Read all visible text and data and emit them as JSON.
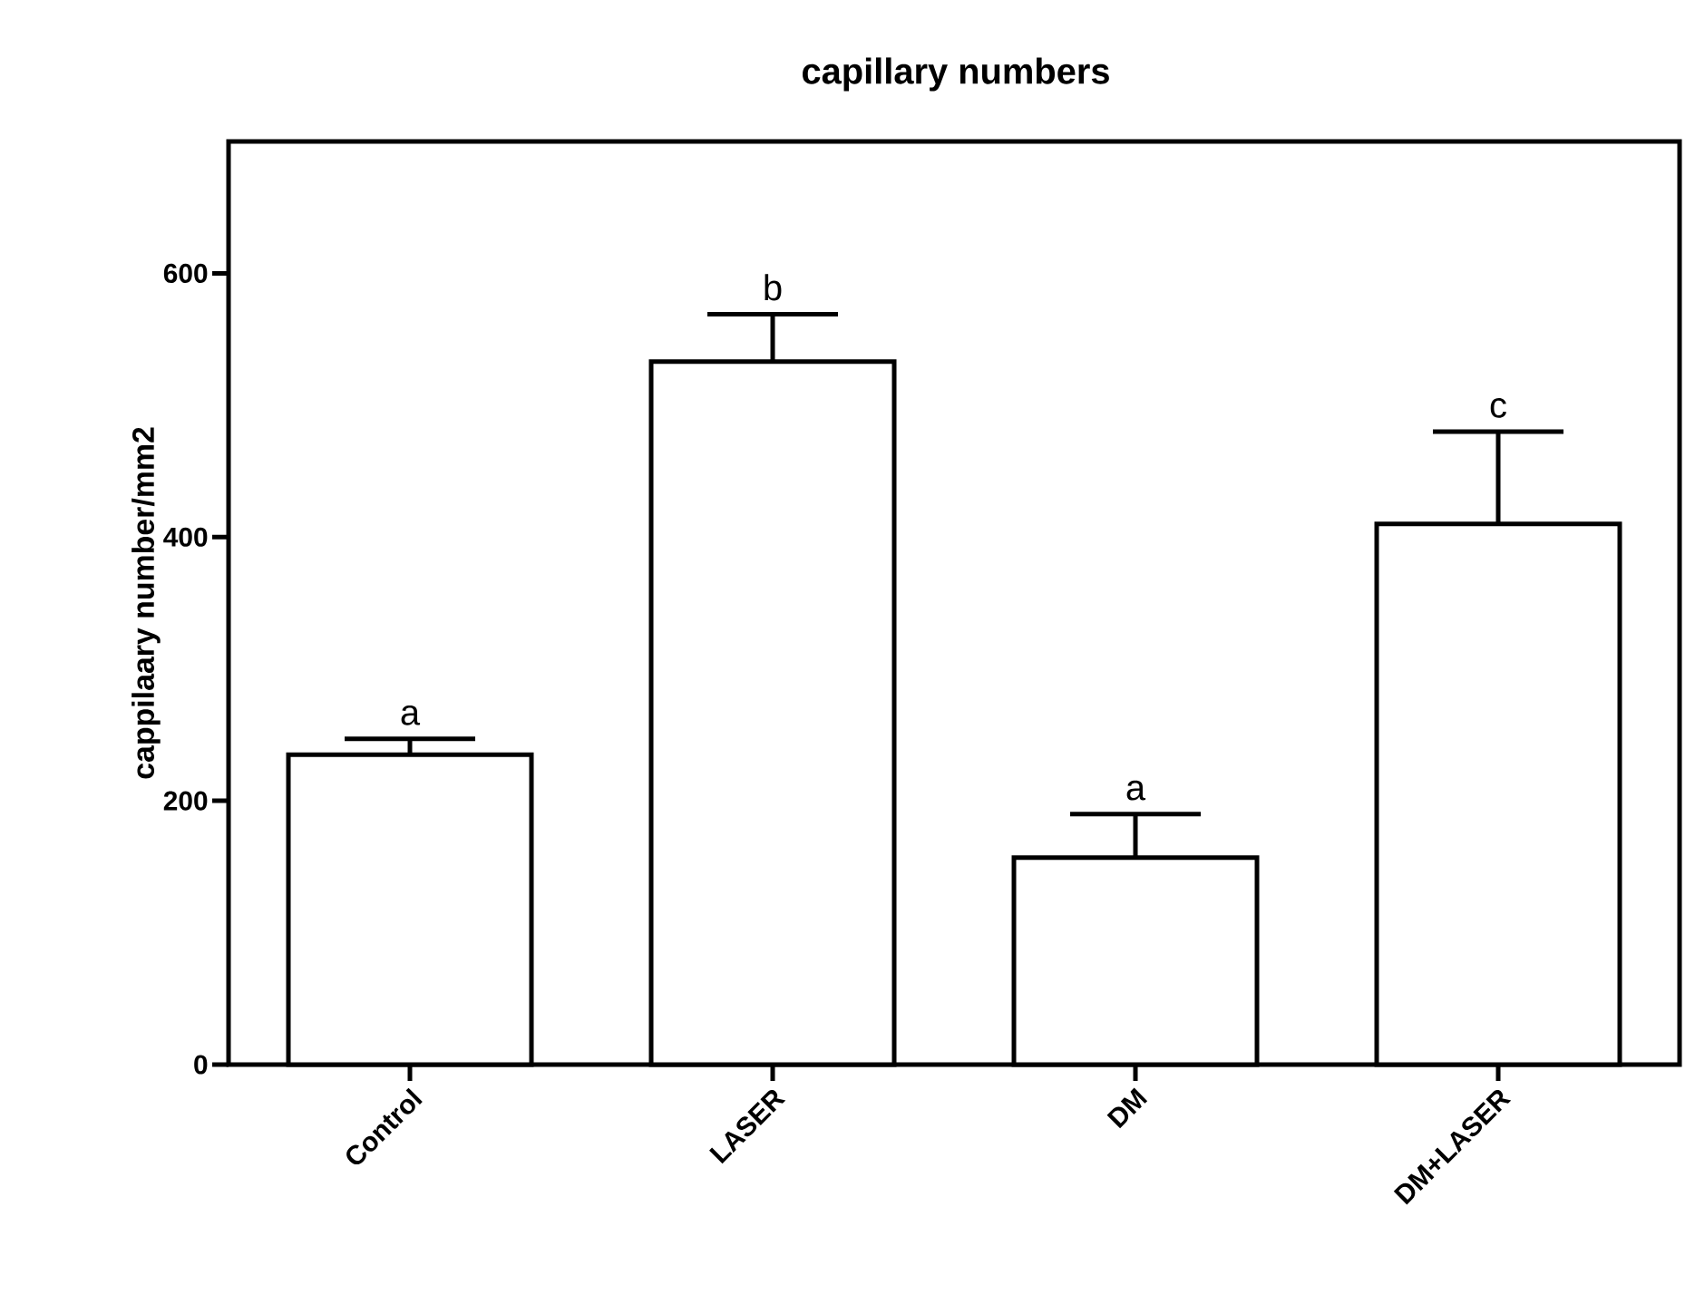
{
  "chart_data": {
    "type": "bar",
    "title": "capillary numbers",
    "ylabel": "cappilaary number/mm2",
    "categories": [
      "Control",
      "LASER",
      "DM",
      "DM+LASER"
    ],
    "values": [
      235,
      533,
      157,
      410
    ],
    "errors": [
      12,
      36,
      33,
      70
    ],
    "color": "#ffffff",
    "ylim": [
      0,
      700
    ],
    "yticks": [
      0,
      200,
      400,
      600
    ],
    "grid": false,
    "annotations": [
      {
        "text": "a",
        "x": "Control",
        "y": 247
      },
      {
        "text": "b",
        "x": "LASER",
        "y": 569
      },
      {
        "text": "a",
        "x": "DM",
        "y": 190
      },
      {
        "text": "c",
        "x": "DM+LASER",
        "y": 480
      }
    ]
  }
}
